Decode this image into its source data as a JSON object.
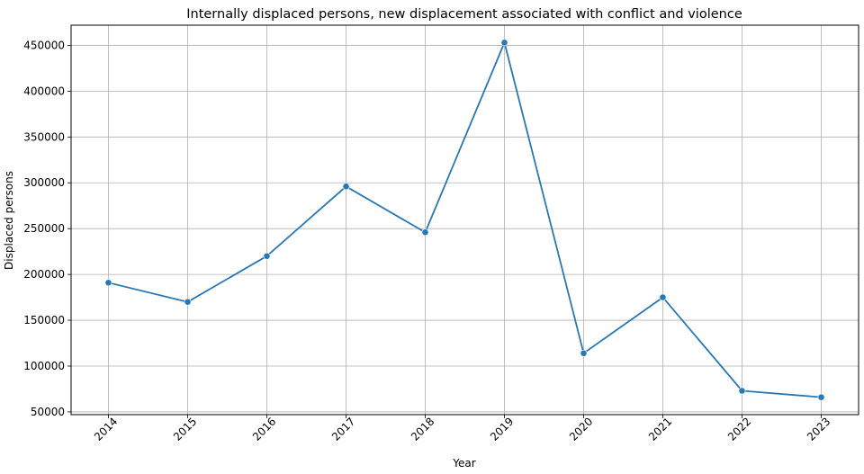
{
  "chart_data": {
    "type": "line",
    "title": "Internally displaced persons, new displacement associated with conflict and violence",
    "xlabel": "Year",
    "ylabel": "Displaced persons",
    "x": [
      "2014",
      "2015",
      "2016",
      "2017",
      "2018",
      "2019",
      "2020",
      "2021",
      "2022",
      "2023"
    ],
    "series": [
      {
        "values": [
          191000,
          170000,
          220000,
          296000,
          246000,
          453000,
          114000,
          175000,
          73000,
          66000
        ],
        "color": "#2878b5",
        "marker": "circle"
      }
    ],
    "ylim": [
      47000,
      472000
    ],
    "yticks": [
      50000,
      100000,
      150000,
      200000,
      250000,
      300000,
      350000,
      400000,
      450000
    ],
    "grid": true,
    "legend": "none"
  }
}
